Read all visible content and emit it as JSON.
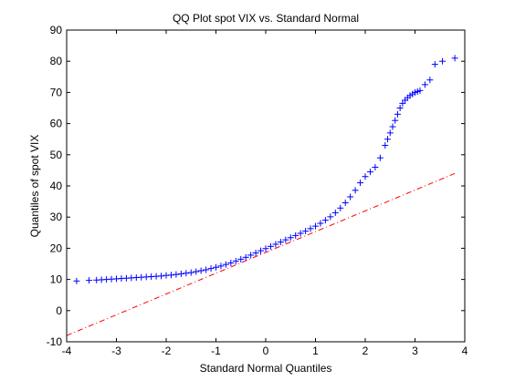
{
  "chart_data": {
    "type": "scatter",
    "title": "QQ Plot spot VIX vs. Standard Normal",
    "xlabel": "Standard Normal Quantiles",
    "ylabel": "Quantiles of spot VIX",
    "xlim": [
      -4,
      4
    ],
    "ylim": [
      -10,
      90
    ],
    "xticks": [
      "-4",
      "-3",
      "-2",
      "-1",
      "0",
      "1",
      "2",
      "3",
      "4"
    ],
    "yticks": [
      "-10",
      "0",
      "10",
      "20",
      "30",
      "40",
      "50",
      "60",
      "70",
      "80",
      "90"
    ],
    "grid": false,
    "marker": "+",
    "colors": {
      "points": "#0000ff",
      "reference_line": "#ff0000",
      "axes": "#000000"
    },
    "reference_line": {
      "style": "dash-dot",
      "x": [
        -4,
        3.8
      ],
      "y": [
        -8,
        44
      ]
    },
    "series": [
      {
        "x": [
          -3.8,
          -3.55,
          -3.4,
          -3.3,
          -3.2,
          -3.1,
          -3.0,
          -2.9,
          -2.8,
          -2.7,
          -2.6,
          -2.5,
          -2.4,
          -2.3,
          -2.2,
          -2.1,
          -2.0,
          -1.9,
          -1.8,
          -1.7,
          -1.6,
          -1.5,
          -1.4,
          -1.3,
          -1.2,
          -1.1,
          -1.0,
          -0.9,
          -0.8,
          -0.7,
          -0.6,
          -0.5,
          -0.4,
          -0.3,
          -0.2,
          -0.1,
          0.0,
          0.1,
          0.2,
          0.3,
          0.4,
          0.5,
          0.6,
          0.7,
          0.8,
          0.9,
          1.0,
          1.1,
          1.2,
          1.3,
          1.4,
          1.5,
          1.6,
          1.7,
          1.8,
          1.9,
          2.0,
          2.1,
          2.2,
          2.3,
          2.4,
          2.45,
          2.5,
          2.55,
          2.6,
          2.65,
          2.7,
          2.75,
          2.8,
          2.85,
          2.9,
          2.95,
          3.0,
          3.05,
          3.1,
          3.2,
          3.3,
          3.4,
          3.55,
          3.8
        ],
        "y": [
          9.5,
          9.7,
          9.8,
          9.9,
          10.0,
          10.1,
          10.2,
          10.3,
          10.4,
          10.5,
          10.6,
          10.7,
          10.8,
          10.9,
          11.0,
          11.1,
          11.3,
          11.4,
          11.6,
          11.8,
          12.0,
          12.2,
          12.5,
          12.8,
          13.1,
          13.5,
          13.9,
          14.3,
          14.8,
          15.3,
          15.9,
          16.5,
          17.1,
          17.8,
          18.5,
          19.2,
          19.9,
          20.6,
          21.3,
          22.0,
          22.7,
          23.4,
          24.1,
          24.8,
          25.5,
          26.3,
          27.1,
          28.0,
          29.0,
          30.1,
          31.4,
          32.9,
          34.6,
          36.5,
          38.6,
          41.0,
          43.0,
          44.5,
          46.0,
          49.0,
          53.0,
          55.0,
          57.0,
          59.0,
          61.0,
          63.0,
          65.0,
          66.5,
          67.5,
          68.3,
          69.0,
          69.5,
          70.0,
          70.3,
          70.6,
          72.5,
          74.0,
          79.0,
          80.0,
          81.0
        ]
      }
    ]
  }
}
